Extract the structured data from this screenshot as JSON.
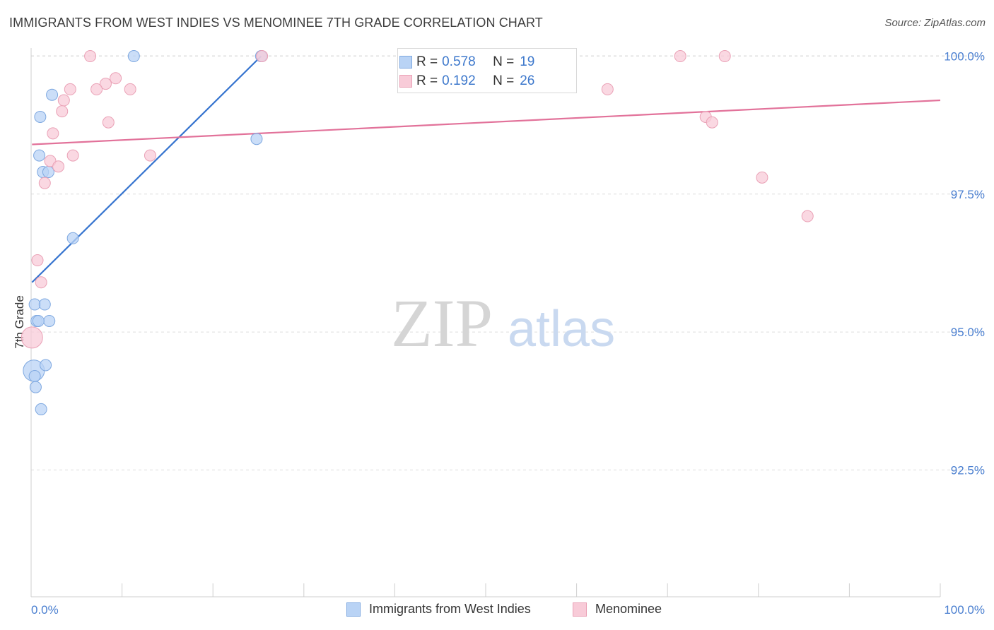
{
  "title": "IMMIGRANTS FROM WEST INDIES VS MENOMINEE 7TH GRADE CORRELATION CHART",
  "source": "Source: ZipAtlas.com",
  "watermark": {
    "zip": "ZIP",
    "atlas": "atlas"
  },
  "colors": {
    "blue_fill": "#b9d3f5",
    "blue_stroke": "#7ea8e0",
    "blue_line": "#3674cf",
    "pink_fill": "#f8cbd8",
    "pink_stroke": "#eaa1b6",
    "pink_line": "#e2729a",
    "tick_text": "#4a7fd0",
    "grid": "#dddddd"
  },
  "stats": {
    "r_label": "R =",
    "n_label": "N =",
    "blue": {
      "r": "0.578",
      "n": "19"
    },
    "pink": {
      "r": "0.192",
      "n": "26"
    }
  },
  "legend": {
    "blue": "Immigrants from West Indies",
    "pink": "Menominee"
  },
  "chart_data": {
    "type": "scatter",
    "title": "IMMIGRANTS FROM WEST INDIES VS MENOMINEE 7TH GRADE CORRELATION CHART",
    "xlabel": "",
    "ylabel": "7th Grade",
    "xlim": [
      0,
      100
    ],
    "ylim": [
      90.2,
      100.25
    ],
    "x_tick_labels": [
      "0.0%",
      "100.0%"
    ],
    "y_ticks": [
      {
        "value": 100.0,
        "label": "100.0%"
      },
      {
        "value": 97.5,
        "label": "97.5%"
      },
      {
        "value": 95.0,
        "label": "95.0%"
      },
      {
        "value": 92.5,
        "label": "92.5%"
      }
    ],
    "series": [
      {
        "name": "Immigrants from West Indies",
        "color": "blue",
        "r": 0.578,
        "n": 19,
        "trend": {
          "x": [
            0.1,
            25.3
          ],
          "y": [
            95.9,
            100.0
          ]
        },
        "points": [
          {
            "x": 11.3,
            "y": 100.0
          },
          {
            "x": 25.3,
            "y": 100.0
          },
          {
            "x": 2.3,
            "y": 99.3
          },
          {
            "x": 1.0,
            "y": 98.9
          },
          {
            "x": 24.8,
            "y": 98.5
          },
          {
            "x": 0.9,
            "y": 98.2
          },
          {
            "x": 1.3,
            "y": 97.9
          },
          {
            "x": 1.9,
            "y": 97.9
          },
          {
            "x": 4.6,
            "y": 96.7
          },
          {
            "x": 0.4,
            "y": 95.5
          },
          {
            "x": 1.5,
            "y": 95.5
          },
          {
            "x": 0.6,
            "y": 95.2
          },
          {
            "x": 2.0,
            "y": 95.2
          },
          {
            "x": 0.8,
            "y": 95.2
          },
          {
            "x": 0.3,
            "y": 94.3,
            "size": "large"
          },
          {
            "x": 0.4,
            "y": 94.2
          },
          {
            "x": 1.6,
            "y": 94.4
          },
          {
            "x": 0.5,
            "y": 94.0
          },
          {
            "x": 1.1,
            "y": 93.6
          }
        ]
      },
      {
        "name": "Menominee",
        "color": "pink",
        "r": 0.192,
        "n": 26,
        "trend": {
          "x": [
            0.1,
            100.0
          ],
          "y": [
            98.4,
            99.2
          ]
        },
        "points": [
          {
            "x": 6.5,
            "y": 100.0
          },
          {
            "x": 25.4,
            "y": 100.0
          },
          {
            "x": 71.4,
            "y": 100.0
          },
          {
            "x": 76.3,
            "y": 100.0
          },
          {
            "x": 9.3,
            "y": 99.6
          },
          {
            "x": 8.2,
            "y": 99.5
          },
          {
            "x": 7.2,
            "y": 99.4
          },
          {
            "x": 10.9,
            "y": 99.4
          },
          {
            "x": 63.4,
            "y": 99.4
          },
          {
            "x": 4.3,
            "y": 99.4
          },
          {
            "x": 3.6,
            "y": 99.2
          },
          {
            "x": 3.4,
            "y": 99.0
          },
          {
            "x": 74.2,
            "y": 98.9
          },
          {
            "x": 8.5,
            "y": 98.8
          },
          {
            "x": 74.9,
            "y": 98.8
          },
          {
            "x": 2.4,
            "y": 98.6
          },
          {
            "x": 4.6,
            "y": 98.2
          },
          {
            "x": 13.1,
            "y": 98.2
          },
          {
            "x": 2.1,
            "y": 98.1
          },
          {
            "x": 3.0,
            "y": 98.0
          },
          {
            "x": 1.5,
            "y": 97.7
          },
          {
            "x": 80.4,
            "y": 97.8
          },
          {
            "x": 85.4,
            "y": 97.1
          },
          {
            "x": 0.7,
            "y": 96.3
          },
          {
            "x": 1.1,
            "y": 95.9
          },
          {
            "x": 0.1,
            "y": 94.9,
            "size": "large"
          }
        ]
      }
    ]
  }
}
